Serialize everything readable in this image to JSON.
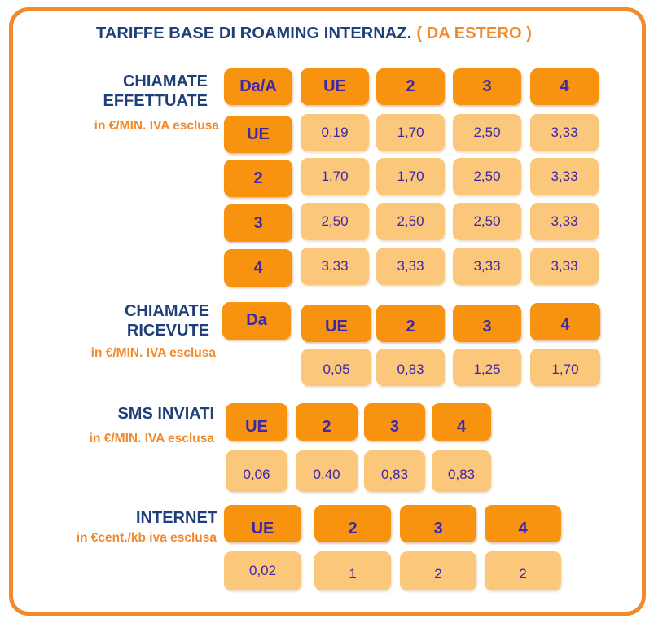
{
  "title": {
    "main": "TARIFFE BASE DI ROAMING INTERNAZ.",
    "sub": "( DA ESTERO )"
  },
  "sections": {
    "calls_made": {
      "label_line1": "CHIAMATE",
      "label_line2": "EFFETTUATE",
      "unit": "in €/MIN. IVA esclusa",
      "corner": "Da/A",
      "columns": [
        "UE",
        "2",
        "3",
        "4"
      ],
      "rows": [
        {
          "from": "UE",
          "values": [
            "0,19",
            "1,70",
            "2,50",
            "3,33"
          ]
        },
        {
          "from": "2",
          "values": [
            "1,70",
            "1,70",
            "2,50",
            "3,33"
          ]
        },
        {
          "from": "3",
          "values": [
            "2,50",
            "2,50",
            "2,50",
            "3,33"
          ]
        },
        {
          "from": "4",
          "values": [
            "3,33",
            "3,33",
            "3,33",
            "3,33"
          ]
        }
      ]
    },
    "calls_received": {
      "label_line1": "CHIAMATE",
      "label_line2": "RICEVUTE",
      "unit": "in €/MIN. IVA esclusa",
      "corner": "Da",
      "columns": [
        "UE",
        "2",
        "3",
        "4"
      ],
      "values": [
        "0,05",
        "0,83",
        "1,25",
        "1,70"
      ]
    },
    "sms_sent": {
      "label": "SMS INVIATI",
      "unit": "in €/MIN. IVA esclusa",
      "columns": [
        "UE",
        "2",
        "3",
        "4"
      ],
      "values": [
        "0,06",
        "0,40",
        "0,83",
        "0,83"
      ]
    },
    "internet": {
      "label": "INTERNET",
      "unit": "in €cent./kb iva esclusa",
      "columns": [
        "UE",
        "2",
        "3",
        "4"
      ],
      "values": [
        "0,02",
        "1",
        "2",
        "2"
      ]
    }
  },
  "colors": {
    "header_fill": "#f7930e",
    "value_fill": "#fbc77a",
    "text_blue": "#1f3f7a",
    "cell_text": "#3e27a8",
    "accent": "#f08a2c"
  }
}
